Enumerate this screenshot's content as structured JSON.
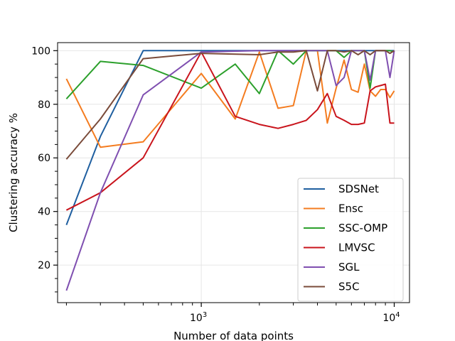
{
  "chart_data": {
    "type": "line",
    "title": "",
    "xlabel": "Number of data points",
    "ylabel": "Clustering accuracy %",
    "xscale": "log",
    "xlim": [
      180,
      12000
    ],
    "ylim": [
      6,
      103
    ],
    "grid": true,
    "legend_position": "lower-right",
    "x_ticks": [
      {
        "value": 1000,
        "base": "10",
        "exp": "3"
      },
      {
        "value": 10000,
        "base": "10",
        "exp": "4"
      }
    ],
    "y_ticks": [
      {
        "value": 20,
        "label": "20"
      },
      {
        "value": 40,
        "label": "40"
      },
      {
        "value": 60,
        "label": "60"
      },
      {
        "value": 80,
        "label": "80"
      },
      {
        "value": 100,
        "label": "100"
      }
    ],
    "series": [
      {
        "name": "SDSNet",
        "color": "#1f5fa0",
        "x": [
          200,
          300,
          500,
          1000,
          10000
        ],
        "y": [
          35,
          68,
          100,
          100,
          100
        ]
      },
      {
        "name": "Ensc",
        "color": "#f47c20",
        "x": [
          200,
          300,
          500,
          1000,
          1500,
          2000,
          2500,
          3000,
          3500,
          4000,
          4500,
          5000,
          5500,
          6000,
          6500,
          7000,
          7500,
          8000,
          8500,
          9000,
          9500,
          10000
        ],
        "y": [
          89.5,
          64,
          66,
          91.5,
          74.5,
          99.5,
          78.5,
          79.5,
          100,
          100,
          73,
          86,
          96.5,
          85.5,
          84.5,
          95,
          85,
          83,
          85.5,
          85.5,
          82.5,
          85
        ]
      },
      {
        "name": "SSC-OMP",
        "color": "#2ca02c",
        "x": [
          200,
          300,
          500,
          1000,
          1500,
          2000,
          2500,
          3000,
          3500,
          4000,
          4500,
          5000,
          5500,
          6000,
          6500,
          7000,
          7500,
          8000,
          8500,
          9000,
          9500,
          10000
        ],
        "y": [
          82,
          96,
          94.5,
          86,
          95,
          84,
          100,
          95,
          100,
          100,
          100,
          100,
          97.5,
          100,
          100,
          100,
          86,
          100,
          100,
          100,
          100,
          99.5
        ]
      },
      {
        "name": "LMVSC",
        "color": "#c9141c",
        "x": [
          200,
          300,
          500,
          1000,
          1500,
          2000,
          2500,
          3000,
          3500,
          4000,
          4500,
          5000,
          5500,
          6000,
          6500,
          7000,
          7500,
          8000,
          8500,
          9000,
          9500,
          10000
        ],
        "y": [
          40.5,
          47,
          60,
          99.5,
          75.5,
          72.5,
          71,
          72.5,
          74,
          78,
          84,
          75.5,
          74,
          72.5,
          72.5,
          73,
          85,
          86.5,
          87,
          87.5,
          73,
          73
        ]
      },
      {
        "name": "SGL",
        "color": "#7f4fb0",
        "x": [
          200,
          300,
          500,
          1000,
          2000,
          3000,
          4000,
          4500,
          5000,
          5500,
          6000,
          6500,
          7000,
          7500,
          8000,
          8500,
          9000,
          9500,
          10000
        ],
        "y": [
          10.5,
          47,
          83.5,
          99.5,
          100,
          100,
          100,
          100,
          87,
          90,
          100,
          100,
          100,
          89,
          100,
          100,
          100,
          90,
          100
        ]
      },
      {
        "name": "S5C",
        "color": "#7a4b3a",
        "x": [
          200,
          300,
          500,
          1000,
          2000,
          2500,
          3000,
          3500,
          4000,
          4500,
          5000,
          5500,
          6000,
          6500,
          7000,
          7500,
          8000,
          8500,
          9000,
          9500,
          10000
        ],
        "y": [
          59.5,
          74.5,
          97,
          99,
          98.5,
          99.5,
          99.5,
          100,
          85,
          100,
          100,
          99.5,
          100,
          98.5,
          100,
          98.5,
          100,
          100,
          100,
          99,
          100
        ]
      }
    ]
  }
}
